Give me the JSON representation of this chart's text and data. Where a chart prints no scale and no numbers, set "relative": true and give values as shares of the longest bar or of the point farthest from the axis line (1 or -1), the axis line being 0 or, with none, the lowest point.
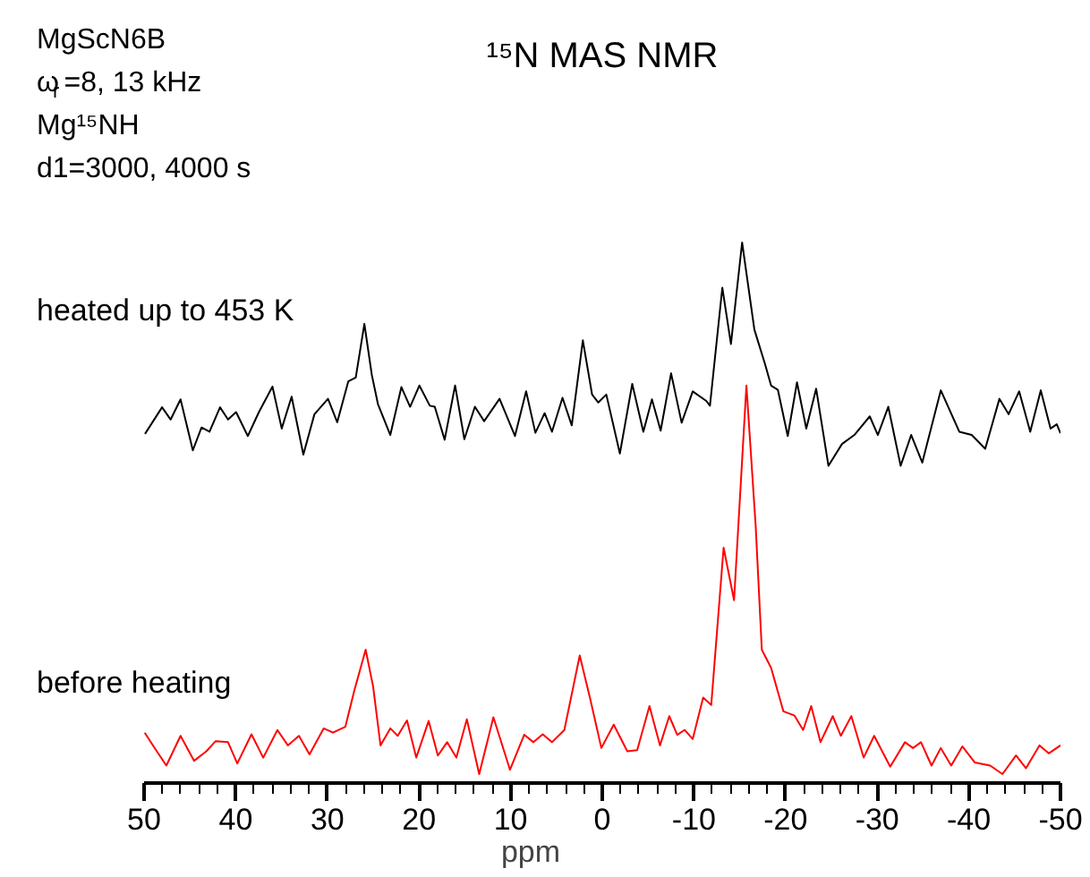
{
  "chart_data": {
    "type": "line",
    "relative": true,
    "title": "¹⁵N MAS NMR",
    "xlabel": "ppm",
    "annotations": [
      "MgScN6B",
      "ω$_{r}$=8, 13 kHz",
      "Mg¹⁵NH",
      "d1=3000, 4000 s"
    ],
    "xlim": [
      50,
      -50
    ],
    "xticks": [
      50,
      40,
      30,
      20,
      10,
      0,
      -10,
      -20,
      -30,
      -40,
      -50
    ],
    "grid": false,
    "marker": "none",
    "line_style": "solid",
    "series": [
      {
        "name": "heated up to 453 K",
        "color": "#000000",
        "x": [
          49.9,
          48.04,
          47.1,
          46.02,
          44.68,
          43.73,
          42.86,
          41.71,
          40.84,
          39.96,
          38.68,
          37.47,
          35.99,
          34.98,
          33.9,
          32.62,
          31.41,
          29.93,
          28.92,
          27.71,
          26.9,
          25.96,
          25.15,
          24.48,
          23.13,
          21.92,
          20.97,
          19.96,
          18.82,
          18.28,
          17.2,
          16.06,
          15.05,
          13.9,
          12.89,
          11.21,
          9.53,
          8.31,
          7.3,
          6.29,
          5.49,
          4.34,
          3.33,
          2.12,
          1.11,
          0.43,
          -0.44,
          -1.92,
          -3.27,
          -4.48,
          -5.42,
          -6.37,
          -7.51,
          -8.66,
          -9.87,
          -11.35,
          -11.75,
          -13.1,
          -14.04,
          -15.26,
          -16.6,
          -17.75,
          -18.42,
          -19.16,
          -20.24,
          -21.25,
          -22.26,
          -23.34,
          -24.68,
          -26.16,
          -27.51,
          -29.19,
          -30.07,
          -31.21,
          -32.56,
          -33.71,
          -34.92,
          -36.94,
          -38.96,
          -40.31,
          -41.79,
          -43.34,
          -44.34,
          -45.49,
          -46.7,
          -47.85,
          -48.92,
          -49.6,
          -50.0
        ],
        "values": [
          0.64,
          0.69,
          0.667,
          0.705,
          0.609,
          0.652,
          0.644,
          0.69,
          0.667,
          0.681,
          0.636,
          0.681,
          0.729,
          0.65,
          0.71,
          0.601,
          0.677,
          0.706,
          0.662,
          0.739,
          0.746,
          0.847,
          0.751,
          0.696,
          0.638,
          0.728,
          0.691,
          0.731,
          0.693,
          0.691,
          0.629,
          0.731,
          0.63,
          0.691,
          0.664,
          0.706,
          0.636,
          0.72,
          0.642,
          0.679,
          0.644,
          0.708,
          0.656,
          0.816,
          0.714,
          0.699,
          0.714,
          0.603,
          0.734,
          0.644,
          0.705,
          0.646,
          0.754,
          0.661,
          0.72,
          0.702,
          0.693,
          0.915,
          0.809,
          1.0,
          0.836,
          0.772,
          0.731,
          0.723,
          0.636,
          0.737,
          0.65,
          0.725,
          0.58,
          0.621,
          0.638,
          0.673,
          0.638,
          0.691,
          0.58,
          0.638,
          0.586,
          0.722,
          0.644,
          0.638,
          0.612,
          0.706,
          0.677,
          0.72,
          0.644,
          0.722,
          0.65,
          0.658,
          0.641
        ]
      },
      {
        "name": "before heating",
        "color": "#ff0000",
        "x": [
          49.93,
          48.92,
          47.57,
          46.02,
          44.54,
          43.2,
          42.19,
          40.84,
          39.83,
          38.28,
          37.0,
          35.45,
          34.31,
          33.1,
          31.95,
          30.4,
          29.39,
          28.04,
          27.03,
          25.82,
          25.01,
          24.2,
          23.13,
          22.32,
          21.31,
          20.3,
          18.95,
          17.94,
          16.93,
          15.92,
          14.78,
          13.43,
          11.88,
          10.07,
          8.52,
          7.51,
          6.5,
          5.49,
          4.14,
          2.46,
          1.31,
          0.1,
          -1.25,
          -2.73,
          -3.81,
          -5.15,
          -6.3,
          -7.31,
          -8.18,
          -8.99,
          -9.87,
          -11.01,
          -11.89,
          -13.24,
          -14.38,
          -15.73,
          -16.74,
          -17.41,
          -18.42,
          -19.77,
          -20.98,
          -21.92,
          -22.8,
          -23.81,
          -25.15,
          -26.03,
          -27.18,
          -28.52,
          -29.67,
          -31.42,
          -33.03,
          -33.91,
          -34.78,
          -35.93,
          -36.94,
          -38.08,
          -39.3,
          -40.64,
          -42.33,
          -43.67,
          -45.15,
          -46.23,
          -47.71,
          -48.72,
          -50.0
        ],
        "values": [
          0.078,
          0.051,
          0.016,
          0.072,
          0.025,
          0.043,
          0.062,
          0.06,
          0.02,
          0.075,
          0.031,
          0.083,
          0.054,
          0.072,
          0.037,
          0.086,
          0.078,
          0.089,
          0.159,
          0.234,
          0.165,
          0.054,
          0.086,
          0.072,
          0.101,
          0.031,
          0.1,
          0.035,
          0.06,
          0.031,
          0.103,
          0.0,
          0.107,
          0.008,
          0.074,
          0.06,
          0.075,
          0.06,
          0.083,
          0.223,
          0.141,
          0.049,
          0.093,
          0.043,
          0.045,
          0.128,
          0.054,
          0.109,
          0.074,
          0.083,
          0.066,
          0.144,
          0.13,
          0.426,
          0.327,
          0.731,
          0.467,
          0.234,
          0.2,
          0.118,
          0.11,
          0.083,
          0.128,
          0.06,
          0.109,
          0.072,
          0.109,
          0.031,
          0.072,
          0.014,
          0.06,
          0.049,
          0.06,
          0.016,
          0.049,
          0.016,
          0.052,
          0.022,
          0.016,
          0.0,
          0.035,
          0.011,
          0.054,
          0.039,
          0.054
        ]
      }
    ]
  }
}
